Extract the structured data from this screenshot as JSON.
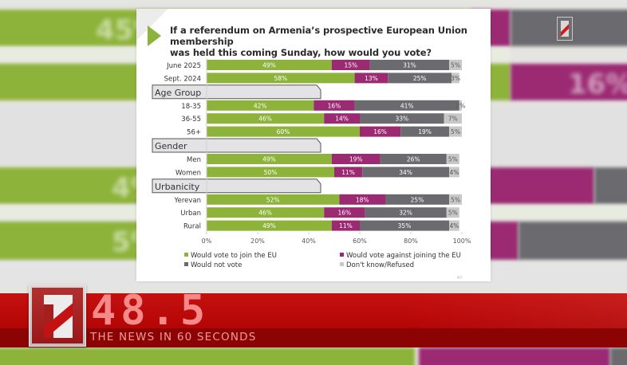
{
  "slide": {
    "title_line1": "If a referendum on Armenia’s prospective European Union membership",
    "title_line2": "was held this coming Sunday, how would you vote?",
    "page_number": "40"
  },
  "colors": {
    "join": "#8db33a",
    "against": "#9b2a72",
    "not_vote": "#6b6b6f",
    "dont_know": "#c8c8c8",
    "ticker_red": "#b50606",
    "ticker_text": "#f48a8a"
  },
  "chart_data": {
    "type": "bar",
    "orientation": "horizontal",
    "stacked": true,
    "title": "If a referendum on Armenia’s prospective European Union membership was held this coming Sunday, how would you vote?",
    "xlabel": "",
    "ylabel": "",
    "xlim": [
      0,
      100
    ],
    "x_ticks": [
      "0%",
      "20%",
      "40%",
      "60%",
      "80%",
      "100%"
    ],
    "legend_position": "bottom",
    "series": [
      {
        "name": "Would vote to join the EU",
        "color": "#8db33a"
      },
      {
        "name": "Would vote against joining the EU",
        "color": "#9b2a72"
      },
      {
        "name": "Would not vote",
        "color": "#6b6b6f"
      },
      {
        "name": "Don't know/Refused",
        "color": "#c8c8c8"
      }
    ],
    "groups": [
      {
        "header": null,
        "rows": [
          {
            "label": "June 2025",
            "values": [
              49,
              15,
              31,
              5
            ]
          },
          {
            "label": "Sept. 2024",
            "values": [
              58,
              13,
              25,
              3
            ]
          }
        ]
      },
      {
        "header": "Age Group",
        "rows": [
          {
            "label": "18-35",
            "values": [
              42,
              16,
              41,
              2
            ]
          },
          {
            "label": "36-55",
            "values": [
              46,
              14,
              33,
              7
            ]
          },
          {
            "label": "56+",
            "values": [
              60,
              16,
              19,
              5
            ]
          }
        ]
      },
      {
        "header": "Gender",
        "rows": [
          {
            "label": "Men",
            "values": [
              49,
              19,
              26,
              5
            ]
          },
          {
            "label": "Women",
            "values": [
              50,
              11,
              34,
              4
            ]
          }
        ]
      },
      {
        "header": "Urbanicity",
        "rows": [
          {
            "label": "Yerevan",
            "values": [
              52,
              18,
              25,
              5
            ]
          },
          {
            "label": "Urban",
            "values": [
              46,
              16,
              32,
              5
            ]
          },
          {
            "label": "Rural",
            "values": [
              49,
              11,
              35,
              4
            ]
          }
        ]
      }
    ]
  },
  "ticker": {
    "number": "48.5",
    "tagline": "THE NEWS IN 60 SECONDS"
  },
  "background": {
    "blurred_labels": [
      "45%",
      "16%",
      "4%",
      "5%"
    ]
  }
}
